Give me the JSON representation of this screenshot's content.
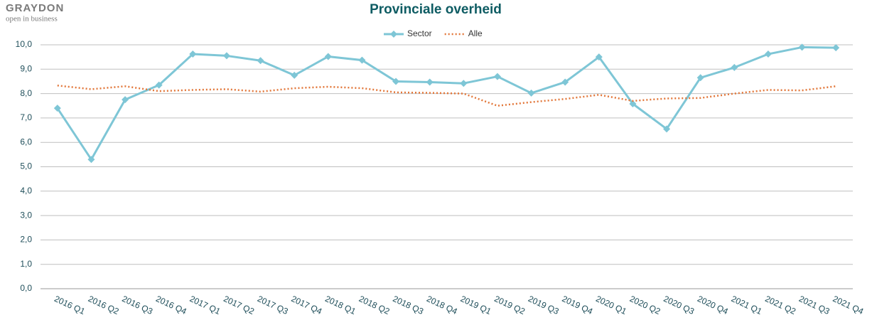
{
  "logo": {
    "name": "GRAYDON",
    "tagline": "open in business"
  },
  "chart_data": {
    "type": "line",
    "title": "Provinciale overheid",
    "categories": [
      "2016 Q1",
      "2016 Q2",
      "2016 Q3",
      "2016 Q4",
      "2017 Q1",
      "2017 Q2",
      "2017 Q3",
      "2017 Q4",
      "2018 Q1",
      "2018 Q2",
      "2018 Q3",
      "2018 Q4",
      "2019 Q1",
      "2019 Q2",
      "2019 Q3",
      "2019 Q4",
      "2020 Q1",
      "2020 Q2",
      "2020 Q3",
      "2020 Q4",
      "2021 Q1",
      "2021 Q2",
      "2021 Q3",
      "2021 Q4"
    ],
    "series": [
      {
        "name": "Sector",
        "color": "#7ec6d6",
        "style": "solid",
        "marker": "diamond",
        "values": [
          7.4,
          5.3,
          7.75,
          8.35,
          9.62,
          9.55,
          9.35,
          8.75,
          9.52,
          9.37,
          8.5,
          8.47,
          8.42,
          8.7,
          8.02,
          8.47,
          9.5,
          7.58,
          6.55,
          8.65,
          9.07,
          9.62,
          9.9,
          9.88
        ]
      },
      {
        "name": "Alle",
        "color": "#e2773a",
        "style": "dotted",
        "marker": "none",
        "values": [
          8.33,
          8.18,
          8.3,
          8.1,
          8.15,
          8.18,
          8.08,
          8.22,
          8.28,
          8.22,
          8.05,
          8.03,
          8.0,
          7.5,
          7.65,
          7.78,
          7.95,
          7.7,
          7.8,
          7.82,
          8.0,
          8.15,
          8.13,
          8.3
        ]
      }
    ],
    "ylim": [
      0,
      10
    ],
    "yticks": [
      {
        "value": 0,
        "label": "0,0"
      },
      {
        "value": 1,
        "label": "1,0"
      },
      {
        "value": 2,
        "label": "2,0"
      },
      {
        "value": 3,
        "label": "3,0"
      },
      {
        "value": 4,
        "label": "4,0"
      },
      {
        "value": 5,
        "label": "5,0"
      },
      {
        "value": 6,
        "label": "6,0"
      },
      {
        "value": 7,
        "label": "7,0"
      },
      {
        "value": 8,
        "label": "8,0"
      },
      {
        "value": 9,
        "label": "9,0"
      },
      {
        "value": 10,
        "label": "10,0"
      }
    ],
    "grid": true,
    "legend": "top"
  }
}
